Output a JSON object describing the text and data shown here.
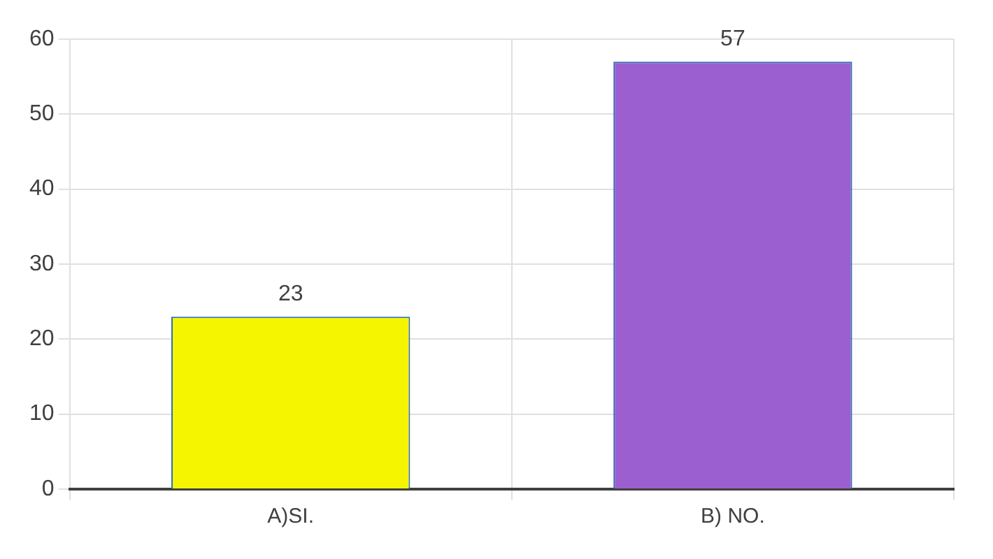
{
  "chart_data": {
    "type": "bar",
    "categories": [
      "A)SI.",
      "B) NO."
    ],
    "values": [
      23,
      57
    ],
    "colors": [
      "#f5f500",
      "#9b5fd0"
    ],
    "ylim": [
      0,
      60
    ],
    "yticks": [
      0,
      10,
      20,
      30,
      40,
      50,
      60
    ],
    "grid": true,
    "data_labels": true,
    "legend": false
  }
}
